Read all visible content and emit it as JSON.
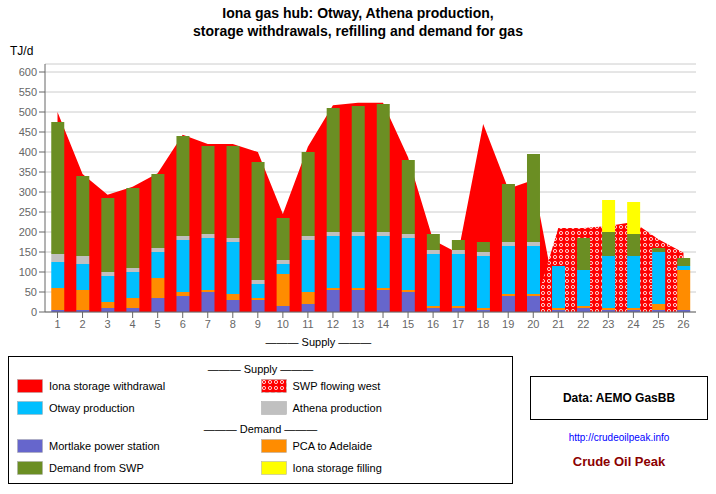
{
  "chart_data": {
    "type": "bar",
    "stacked": true,
    "title": "Iona gas hub: Otway, Athena production,",
    "subtitle": "storage withdrawals, refilling and demand for gas",
    "y_label": "TJ/d",
    "categories": [
      "1",
      "2",
      "3",
      "4",
      "5",
      "6",
      "7",
      "8",
      "9",
      "10",
      "11",
      "12",
      "13",
      "14",
      "15",
      "16",
      "17",
      "18",
      "19",
      "20",
      "21",
      "22",
      "23",
      "24",
      "25",
      "26"
    ],
    "ylim": [
      0,
      620
    ],
    "yticks": [
      0,
      50,
      100,
      150,
      200,
      250,
      300,
      350,
      400,
      450,
      500,
      550,
      600
    ],
    "grid": true,
    "series": [
      {
        "name": "Iona storage withdrawal",
        "type": "area",
        "group": "——— Supply ———",
        "color": "#FF0000",
        "values": [
          500,
          345,
          293,
          313,
          347,
          443,
          420,
          420,
          400,
          245,
          413,
          517,
          523,
          523,
          387,
          180,
          147,
          470,
          308,
          330,
          0,
          0,
          0,
          0,
          0,
          0
        ]
      },
      {
        "name": "SWP flowing west",
        "type": "area",
        "group": "——— Supply ———",
        "color": "#FF0000",
        "marker": "dots",
        "values": [
          0,
          0,
          0,
          0,
          0,
          0,
          0,
          0,
          0,
          0,
          0,
          0,
          0,
          0,
          0,
          0,
          0,
          0,
          0,
          0,
          210,
          210,
          215,
          225,
          182,
          148
        ]
      },
      {
        "name": "Mortlake power station",
        "type": "bar",
        "group": "——— Demand ———",
        "color": "#6666CC",
        "values": [
          5,
          5,
          10,
          10,
          35,
          40,
          50,
          30,
          30,
          15,
          20,
          55,
          55,
          55,
          50,
          10,
          10,
          5,
          40,
          40,
          5,
          10,
          5,
          5,
          5,
          5
        ]
      },
      {
        "name": "PCA to Adelaide",
        "type": "bar",
        "group": "——— Demand ———",
        "color": "#FF8C00",
        "values": [
          55,
          50,
          15,
          25,
          50,
          10,
          5,
          15,
          5,
          80,
          30,
          5,
          5,
          5,
          5,
          5,
          5,
          5,
          5,
          5,
          5,
          5,
          5,
          5,
          15,
          100
        ]
      },
      {
        "name": "Otway production",
        "type": "bar",
        "group": "——— Supply ———",
        "color": "#00BFFF",
        "values": [
          65,
          65,
          65,
          65,
          65,
          130,
          130,
          130,
          35,
          25,
          130,
          130,
          130,
          130,
          130,
          130,
          130,
          130,
          120,
          120,
          105,
          90,
          130,
          130,
          130,
          10
        ]
      },
      {
        "name": "Athena production",
        "type": "bar",
        "group": "——— Supply ———",
        "color": "#C0C0C0",
        "values": [
          20,
          20,
          10,
          10,
          10,
          10,
          10,
          10,
          10,
          10,
          10,
          10,
          10,
          10,
          10,
          10,
          10,
          10,
          10,
          10,
          0,
          0,
          0,
          0,
          0,
          0
        ]
      },
      {
        "name": "Demand from SWP",
        "type": "bar",
        "group": "——— Demand ———",
        "color": "#6B8E23",
        "values": [
          330,
          200,
          185,
          200,
          185,
          250,
          220,
          230,
          295,
          105,
          210,
          310,
          315,
          320,
          185,
          40,
          25,
          25,
          145,
          220,
          0,
          80,
          60,
          55,
          10,
          20
        ]
      },
      {
        "name": "Iona storage filling",
        "type": "bar",
        "group": "——— Demand ———",
        "color": "#FFFF00",
        "values": [
          0,
          0,
          0,
          0,
          0,
          0,
          0,
          0,
          0,
          0,
          0,
          0,
          0,
          0,
          0,
          0,
          0,
          0,
          0,
          0,
          0,
          0,
          80,
          80,
          0,
          0
        ]
      }
    ],
    "annotations": [
      "——— Supply ———",
      "Data: AEMO GasBB",
      "http://crudeoilpeak.info",
      "Crude Oil Peak"
    ]
  }
}
